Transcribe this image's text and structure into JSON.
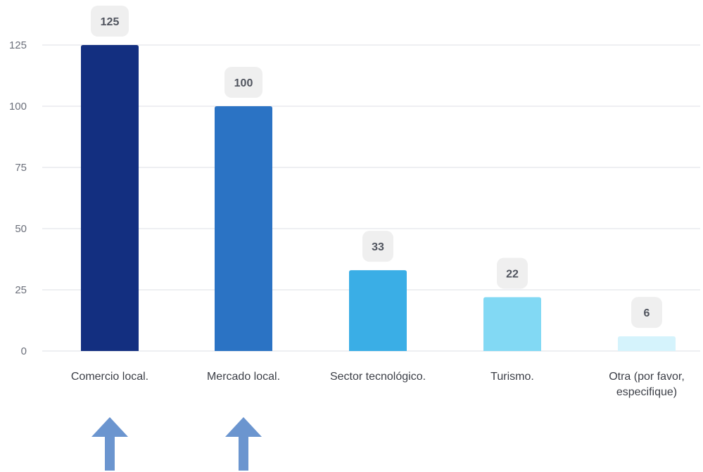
{
  "chart_data": {
    "type": "bar",
    "categories": [
      [
        "Comercio local."
      ],
      [
        "Mercado local."
      ],
      [
        "Sector tecnológico."
      ],
      [
        "Turismo."
      ],
      [
        "Otra (por favor,",
        "especifique)"
      ]
    ],
    "values": [
      125,
      100,
      33,
      22,
      6
    ],
    "value_labels": [
      "125",
      "100",
      "33",
      "22",
      "6"
    ],
    "bar_colors": [
      "#132f80",
      "#2b73c4",
      "#3aaee6",
      "#82d9f4",
      "#d5f3fc"
    ],
    "label_badge_color": "#efefef",
    "ylim": [
      0,
      125
    ],
    "yticks": [
      0,
      25,
      50,
      75,
      100,
      125
    ],
    "grid": true,
    "title": "",
    "xlabel": "",
    "ylabel": ""
  },
  "annotations": {
    "arrows": [
      {
        "category_index": 0,
        "icon": "up-arrow-icon",
        "color": "#6b95cf"
      },
      {
        "category_index": 1,
        "icon": "up-arrow-icon",
        "color": "#6b95cf"
      }
    ]
  }
}
